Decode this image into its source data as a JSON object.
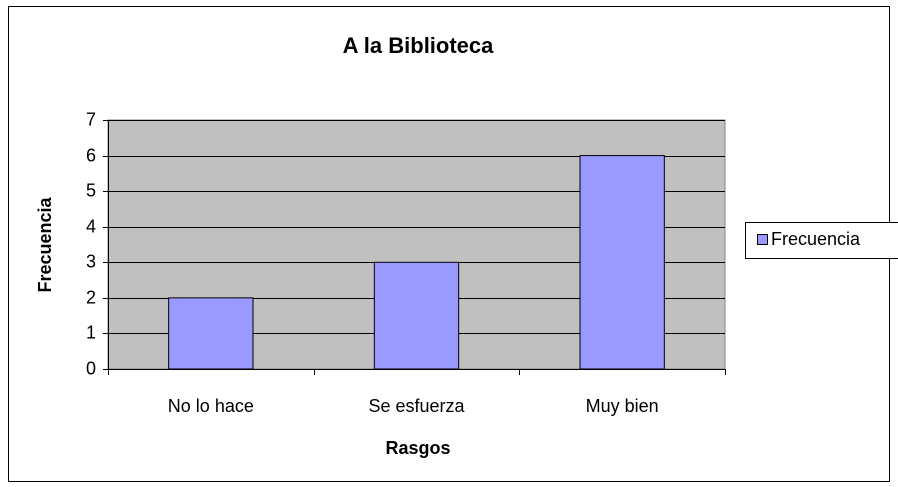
{
  "chart_data": {
    "type": "bar",
    "title": "A la Biblioteca",
    "x_label": "Rasgos",
    "y_label": "Frecuencia",
    "categories": [
      "No lo hace",
      "Se esfuerza",
      "Muy bien"
    ],
    "series": [
      {
        "name": "Frecuencia",
        "color": "#9999ff",
        "values": [
          2,
          3,
          6
        ]
      }
    ],
    "ylim": [
      0,
      7
    ],
    "yticks": [
      0,
      1,
      2,
      3,
      4,
      5,
      6,
      7
    ],
    "grid": true,
    "legend": "right",
    "plot_background": "#c0c0c0"
  }
}
